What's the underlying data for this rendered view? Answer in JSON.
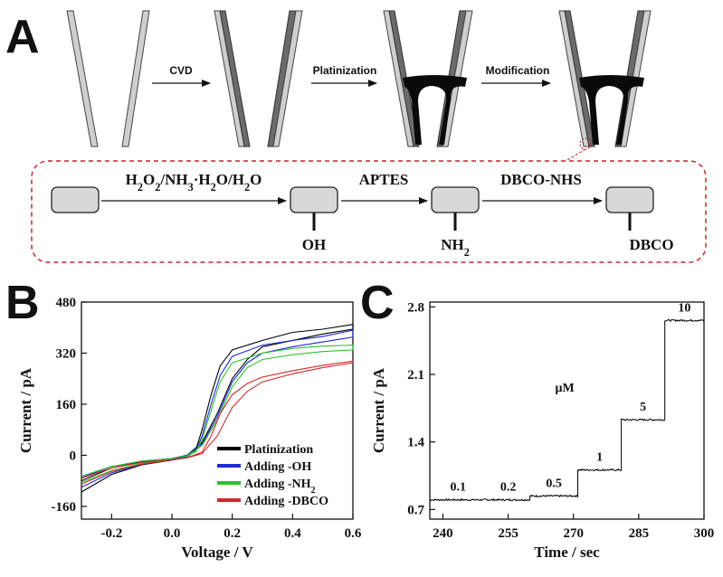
{
  "figure": {
    "panels": {
      "a": "A",
      "b": "B",
      "c": "C"
    }
  },
  "schematic": {
    "stages": [
      "bare",
      "cvd",
      "platinized",
      "modified"
    ],
    "arrows": [
      "CVD",
      "Platinization",
      "Modification"
    ]
  },
  "inset": {
    "steps": [
      {
        "reagent": "H2O2/NH3·H2O/H2O",
        "group": "OH"
      },
      {
        "reagent": "APTES",
        "group": "NH2"
      },
      {
        "reagent": "DBCO-NHS",
        "group": "DBCO"
      }
    ],
    "border_color": "#c0282d"
  },
  "colors": {
    "black": "#000000",
    "blue": "#1f2bd6",
    "green": "#29c42b",
    "red": "#d12a2a",
    "glass": "#cfcfcf",
    "carbon": "#6b6b6b",
    "box": "#d8d8d8"
  },
  "chart_data": [
    {
      "id": "B",
      "type": "line",
      "xlabel": "Voltage / V",
      "ylabel": "Current / pA",
      "xlim": [
        -0.3,
        0.6
      ],
      "ylim": [
        -200,
        480
      ],
      "xticks": [
        -0.2,
        0.0,
        0.2,
        0.4,
        0.6
      ],
      "xtick_labels": [
        "-0.2",
        "0.0",
        "0.2",
        "0.4",
        "0.6"
      ],
      "yticks": [
        -160,
        0,
        160,
        320,
        480
      ],
      "ytick_labels": [
        "-160",
        "0",
        "160",
        "320",
        "480"
      ],
      "legend_position": "bottom-right",
      "series": [
        {
          "name": "Platinization",
          "color": "#000000",
          "forward": [
            [
              -0.3,
              -115
            ],
            [
              -0.2,
              -60
            ],
            [
              -0.1,
              -30
            ],
            [
              0.0,
              -15
            ],
            [
              0.05,
              -5
            ],
            [
              0.08,
              20
            ],
            [
              0.1,
              80
            ],
            [
              0.13,
              190
            ],
            [
              0.16,
              280
            ],
            [
              0.2,
              330
            ],
            [
              0.3,
              360
            ],
            [
              0.4,
              385
            ],
            [
              0.5,
              395
            ],
            [
              0.6,
              410
            ]
          ],
          "reverse": [
            [
              0.6,
              395
            ],
            [
              0.5,
              380
            ],
            [
              0.4,
              360
            ],
            [
              0.3,
              340
            ],
            [
              0.25,
              300
            ],
            [
              0.2,
              240
            ],
            [
              0.15,
              130
            ],
            [
              0.1,
              40
            ],
            [
              0.05,
              0
            ],
            [
              0.0,
              -10
            ],
            [
              -0.1,
              -20
            ],
            [
              -0.2,
              -40
            ],
            [
              -0.3,
              -80
            ]
          ]
        },
        {
          "name": "Adding -OH",
          "color": "#1f2bd6",
          "forward": [
            [
              -0.3,
              -100
            ],
            [
              -0.2,
              -55
            ],
            [
              -0.1,
              -28
            ],
            [
              0.0,
              -12
            ],
            [
              0.05,
              -5
            ],
            [
              0.08,
              15
            ],
            [
              0.1,
              60
            ],
            [
              0.13,
              160
            ],
            [
              0.16,
              250
            ],
            [
              0.2,
              310
            ],
            [
              0.3,
              345
            ],
            [
              0.4,
              360
            ],
            [
              0.5,
              372
            ],
            [
              0.6,
              392
            ]
          ],
          "reverse": [
            [
              0.6,
              370
            ],
            [
              0.5,
              355
            ],
            [
              0.4,
              340
            ],
            [
              0.3,
              320
            ],
            [
              0.25,
              290
            ],
            [
              0.2,
              230
            ],
            [
              0.15,
              120
            ],
            [
              0.1,
              35
            ],
            [
              0.05,
              0
            ],
            [
              0.0,
              -10
            ],
            [
              -0.1,
              -18
            ],
            [
              -0.2,
              -35
            ],
            [
              -0.3,
              -70
            ]
          ]
        },
        {
          "name": "Adding -NH2",
          "color": "#29c42b",
          "forward": [
            [
              -0.3,
              -85
            ],
            [
              -0.2,
              -48
            ],
            [
              -0.1,
              -25
            ],
            [
              0.0,
              -10
            ],
            [
              0.05,
              -3
            ],
            [
              0.08,
              12
            ],
            [
              0.1,
              50
            ],
            [
              0.13,
              140
            ],
            [
              0.16,
              230
            ],
            [
              0.2,
              290
            ],
            [
              0.3,
              320
            ],
            [
              0.4,
              335
            ],
            [
              0.5,
              342
            ],
            [
              0.6,
              345
            ]
          ],
          "reverse": [
            [
              0.6,
              330
            ],
            [
              0.5,
              325
            ],
            [
              0.4,
              315
            ],
            [
              0.3,
              300
            ],
            [
              0.25,
              275
            ],
            [
              0.2,
              215
            ],
            [
              0.15,
              110
            ],
            [
              0.1,
              30
            ],
            [
              0.05,
              -2
            ],
            [
              0.0,
              -10
            ],
            [
              -0.1,
              -18
            ],
            [
              -0.2,
              -35
            ],
            [
              -0.3,
              -65
            ]
          ]
        },
        {
          "name": "Adding -DBCO",
          "color": "#d12a2a",
          "forward": [
            [
              -0.3,
              -90
            ],
            [
              -0.2,
              -50
            ],
            [
              -0.1,
              -28
            ],
            [
              0.0,
              -14
            ],
            [
              0.05,
              -8
            ],
            [
              0.1,
              10
            ],
            [
              0.13,
              60
            ],
            [
              0.16,
              130
            ],
            [
              0.2,
              190
            ],
            [
              0.25,
              225
            ],
            [
              0.3,
              245
            ],
            [
              0.4,
              265
            ],
            [
              0.5,
              282
            ],
            [
              0.6,
              295
            ]
          ],
          "reverse": [
            [
              0.6,
              290
            ],
            [
              0.5,
              275
            ],
            [
              0.4,
              255
            ],
            [
              0.3,
              230
            ],
            [
              0.25,
              200
            ],
            [
              0.2,
              150
            ],
            [
              0.15,
              60
            ],
            [
              0.1,
              5
            ],
            [
              0.05,
              -8
            ],
            [
              0.0,
              -15
            ],
            [
              -0.1,
              -22
            ],
            [
              -0.2,
              -40
            ],
            [
              -0.3,
              -72
            ]
          ]
        }
      ]
    },
    {
      "id": "C",
      "type": "line",
      "xlabel": "Time / sec",
      "ylabel": "Current / pA",
      "xlim": [
        237,
        300
      ],
      "ylim": [
        0.6,
        2.85
      ],
      "xticks": [
        240,
        255,
        270,
        285,
        300
      ],
      "xtick_labels": [
        "240",
        "255",
        "270",
        "285",
        "300"
      ],
      "yticks": [
        0.7,
        1.4,
        2.1,
        2.8
      ],
      "ytick_labels": [
        "0.7",
        "1.4",
        "2.1",
        "2.8"
      ],
      "unit_label": "μM",
      "steps": [
        {
          "label": "0.1",
          "t_start": 237,
          "t_end": 250,
          "current": 0.8
        },
        {
          "label": "0.2",
          "t_start": 250,
          "t_end": 260,
          "current": 0.8
        },
        {
          "label": "0.5",
          "t_start": 260,
          "t_end": 271,
          "current": 0.84
        },
        {
          "label": "1",
          "t_start": 271,
          "t_end": 281,
          "current": 1.11
        },
        {
          "label": "5",
          "t_start": 281,
          "t_end": 291,
          "current": 1.63
        },
        {
          "label": "10",
          "t_start": 291,
          "t_end": 300,
          "current": 2.66
        }
      ]
    }
  ]
}
